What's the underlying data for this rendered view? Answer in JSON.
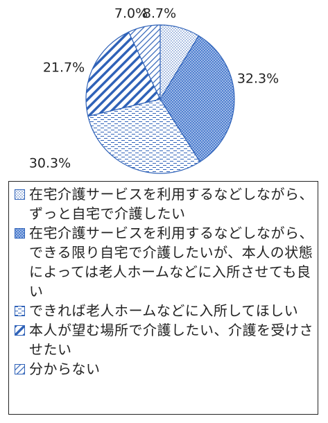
{
  "chart_data": {
    "type": "pie",
    "slices": [
      {
        "label": "在宅介護サービスを利用するなどしながら、ずっと自宅で介護したい",
        "value": 8.7,
        "display": "8.7%",
        "pattern": "dots",
        "color": "#ffffff"
      },
      {
        "label": "在宅介護サービスを利用するなどしながら、できる限り自宅で介護したいが、本人の状態によっては老人ホームなどに入所させても良い",
        "value": 32.3,
        "display": "32.3%",
        "pattern": "dense",
        "color": "#4f7fd0"
      },
      {
        "label": "できれば老人ホームなどに入所してほしい",
        "value": 30.3,
        "display": "30.3%",
        "pattern": "dashes",
        "color": "#ffffff"
      },
      {
        "label": "本人が望む場所で介護したい、介護を受けさせたい",
        "value": 21.7,
        "display": "21.7%",
        "pattern": "stripes-wide",
        "color": "#ffffff"
      },
      {
        "label": "分からない",
        "value": 7.0,
        "display": "7.0%",
        "pattern": "stripes-thin",
        "color": "#ffffff"
      }
    ],
    "start_angle": "12 o'clock",
    "direction": "clockwise",
    "legend_position": "bottom"
  }
}
